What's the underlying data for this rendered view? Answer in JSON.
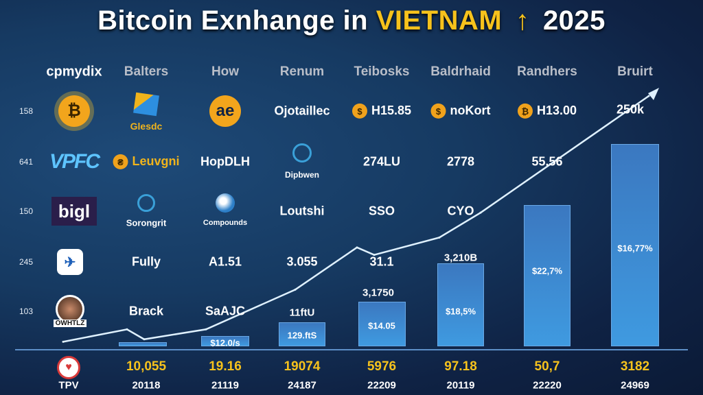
{
  "title": {
    "part1": "Bitcoin Exnhange in",
    "highlight": "VIETNAM",
    "arrow": "↑",
    "year": "2025"
  },
  "headers": [
    "cpmydix",
    "Balters",
    "How",
    "Renum",
    "Teibosks",
    "Baldrhaid",
    "Randhers",
    "Bruirt"
  ],
  "y_labels": [
    "158",
    "641",
    "150",
    "245",
    "103"
  ],
  "rows": [
    {
      "logo_text": "",
      "cells": [
        "Glesdc",
        "",
        "Ojotaillec",
        "H15.85",
        "noKort",
        "H13.00",
        "250k"
      ]
    },
    {
      "logo_text": "VPFC",
      "cells": [
        "Leuvgni",
        "HopDLH",
        "Dipbwen",
        "274LU",
        "2778",
        "55.56",
        ""
      ]
    },
    {
      "logo_text": "bigl",
      "cells": [
        "Sorongrit",
        "Compounds",
        "Loutshi",
        "SSO",
        "CYO",
        "",
        ""
      ]
    },
    {
      "logo_text": "",
      "cells": [
        "Fully",
        "A1.51",
        "3.055",
        "31.1",
        "3,210B",
        "",
        ""
      ]
    },
    {
      "logo_text": "OWHTLZ",
      "cells": [
        "Brack",
        "SaAJC",
        "11ftU",
        "3,1750",
        "",
        "",
        ""
      ]
    }
  ],
  "bottom_label": "TPV",
  "bottom_values": [
    "10,055",
    "19.16",
    "19074",
    "5976",
    "97.18",
    "50,7",
    "3182"
  ],
  "years": [
    "20118",
    "21119",
    "24187",
    "22209",
    "20119",
    "22220",
    "24969"
  ],
  "chart_data": {
    "type": "bar",
    "title": "Bitcoin Exnhange in VIETNAM 2025",
    "categories": [
      "20118",
      "21119",
      "24187",
      "22209",
      "20119",
      "22220",
      "24969"
    ],
    "bar_labels": [
      "",
      "$12.0/s",
      "129.ftS",
      "$14.05",
      "$18,5%",
      "$22,7%",
      "$16,77%"
    ],
    "values_relative": [
      0.02,
      0.05,
      0.12,
      0.22,
      0.41,
      0.7,
      1.0
    ],
    "line_relative": [
      0.01,
      0.06,
      0.02,
      0.06,
      0.22,
      0.39,
      0.36,
      0.43,
      0.53,
      1.0
    ],
    "colors": {
      "bar": "#3f8fd6",
      "line": "#dff1ff",
      "accent": "#f6c21c"
    }
  }
}
